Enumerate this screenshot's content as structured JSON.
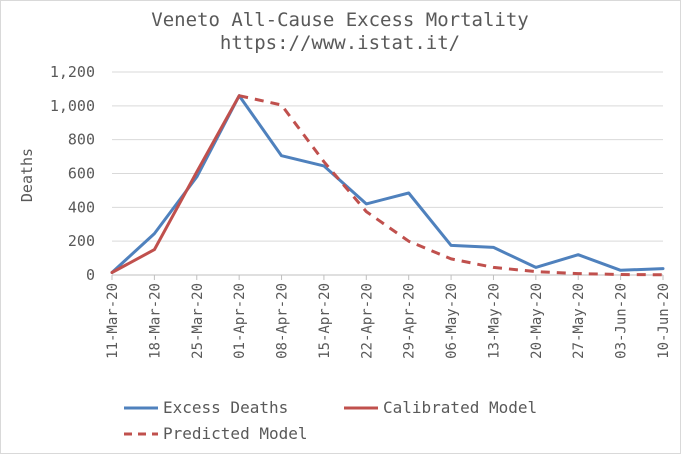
{
  "chart_data": {
    "type": "line",
    "title": "Veneto All-Cause Excess Mortality",
    "subtitle": "https://www.istat.it/",
    "xlabel": "",
    "ylabel": "Deaths",
    "ylim": [
      0,
      1200
    ],
    "yticks": [
      0,
      200,
      400,
      600,
      800,
      1000,
      1200
    ],
    "ytick_labels": [
      "0",
      "200",
      "400",
      "600",
      "800",
      "1,000",
      "1,200"
    ],
    "grid": true,
    "legend_position": "bottom",
    "categories": [
      "11-Mar-20",
      "18-Mar-20",
      "25-Mar-20",
      "01-Apr-20",
      "08-Apr-20",
      "15-Apr-20",
      "22-Apr-20",
      "29-Apr-20",
      "06-May-20",
      "13-May-20",
      "20-May-20",
      "27-May-20",
      "03-Jun-20",
      "10-Jun-20"
    ],
    "series": [
      {
        "name": "Excess Deaths",
        "style": "solid",
        "color": "#4f81bd",
        "values": [
          15,
          245,
          580,
          1060,
          705,
          645,
          420,
          485,
          175,
          163,
          45,
          120,
          28,
          38
        ]
      },
      {
        "name": "Calibrated Model",
        "style": "solid",
        "color": "#c0504d",
        "values": [
          15,
          150,
          610,
          1060,
          null,
          null,
          null,
          null,
          null,
          null,
          null,
          null,
          null,
          null
        ]
      },
      {
        "name": "Predicted Model",
        "style": "dashed",
        "color": "#c0504d",
        "values": [
          null,
          null,
          null,
          1060,
          1005,
          670,
          375,
          200,
          95,
          45,
          20,
          8,
          3,
          1
        ]
      }
    ]
  }
}
